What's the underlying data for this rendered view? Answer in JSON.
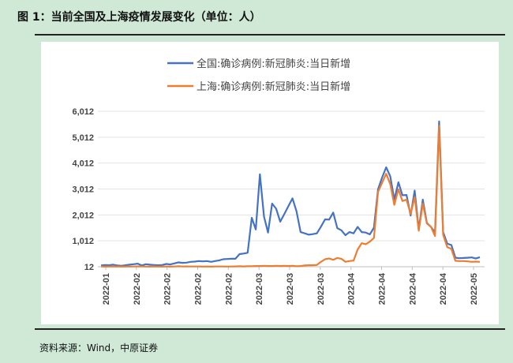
{
  "figure": {
    "title": "图 1：当前全国及上海疫情发展变化（单位：人）",
    "source": "资料来源：Wind，中原证券"
  },
  "colors": {
    "background": "#cfe9d6",
    "national": "#4472c4",
    "shanghai": "#ed7d31"
  },
  "chart_data": {
    "type": "line",
    "title": "",
    "xlabel": "",
    "ylabel": "",
    "ylim": [
      12,
      6012
    ],
    "yticks": [
      12,
      1012,
      2012,
      3012,
      4012,
      5012,
      6012
    ],
    "ytick_labels": [
      "12",
      "1,012",
      "2,012",
      "3,012",
      "4,012",
      "5,012",
      "6,012"
    ],
    "xtick_labels": [
      "2022-01",
      "2022-02",
      "2022-02",
      "2022-02",
      "2022-02",
      "2022-03",
      "2022-03",
      "2022-03",
      "2022-04",
      "2022-04",
      "2022-04",
      "2022-04",
      "2022-05"
    ],
    "legend_position": "top",
    "grid": "horizontal",
    "series": [
      {
        "name": "全国:确诊病例:新冠肺炎:当日新增",
        "color": "#4472c4",
        "values": [
          60,
          80,
          70,
          90,
          60,
          50,
          70,
          90,
          110,
          130,
          60,
          110,
          90,
          80,
          70,
          80,
          120,
          100,
          140,
          180,
          160,
          170,
          200,
          210,
          230,
          220,
          230,
          200,
          230,
          260,
          300,
          310,
          320,
          320,
          500,
          520,
          550,
          1900,
          1450,
          3580,
          1950,
          1330,
          2450,
          2250,
          1750,
          2050,
          2350,
          2650,
          2150,
          1350,
          1300,
          1250,
          1270,
          1300,
          1560,
          1840,
          1830,
          2100,
          1500,
          1420,
          1230,
          1350,
          1300,
          1550,
          1350,
          1330,
          1260,
          1520,
          3000,
          3450,
          3850,
          3500,
          2600,
          3270,
          2770,
          2780,
          1990,
          2950,
          1450,
          2600,
          1700,
          1550,
          1330,
          5620,
          1350,
          900,
          850,
          360,
          340,
          350,
          360,
          370,
          330,
          380
        ]
      },
      {
        "name": "上海:确诊病例:新冠肺炎:当日新增",
        "color": "#ed7d31",
        "values": [
          20,
          15,
          20,
          18,
          20,
          15,
          20,
          18,
          20,
          25,
          20,
          18,
          15,
          20,
          18,
          15,
          20,
          15,
          20,
          30,
          20,
          25,
          20,
          20,
          20,
          18,
          20,
          15,
          20,
          20,
          20,
          18,
          20,
          25,
          30,
          25,
          30,
          30,
          40,
          40,
          50,
          40,
          40,
          50,
          40,
          50,
          40,
          50,
          30,
          40,
          60,
          70,
          70,
          80,
          200,
          300,
          330,
          280,
          350,
          320,
          200,
          230,
          250,
          680,
          920,
          880,
          980,
          1120,
          2900,
          3250,
          3600,
          3200,
          2400,
          3000,
          2550,
          2600,
          2050,
          2700,
          1400,
          2450,
          1680,
          1550,
          1200,
          5450,
          1250,
          770,
          700,
          240,
          230,
          230,
          220,
          200,
          210,
          200
        ]
      }
    ]
  }
}
